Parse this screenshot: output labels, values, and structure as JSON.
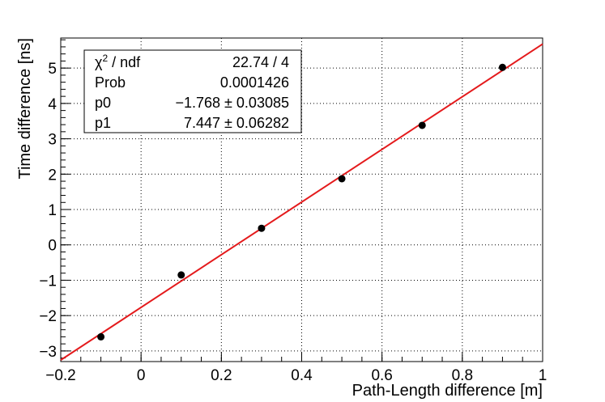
{
  "chart_data": {
    "type": "scatter",
    "xlabel": "Path-Length difference [m]",
    "ylabel": "Time difference [ns]",
    "xlim": [
      -0.2,
      1.0
    ],
    "ylim": [
      -3.3,
      5.85
    ],
    "grid": true,
    "x_tick_labels": [
      "−0.2",
      "0",
      "0.2",
      "0.4",
      "0.6",
      "0.8",
      "1"
    ],
    "y_tick_labels": [
      "−3",
      "−2",
      "−1",
      "0",
      "1",
      "2",
      "3",
      "4",
      "5"
    ],
    "x_ticks": [
      -0.2,
      0,
      0.2,
      0.4,
      0.6,
      0.8,
      1.0
    ],
    "y_ticks": [
      -3,
      -2,
      -1,
      0,
      1,
      2,
      3,
      4,
      5
    ],
    "points": [
      {
        "x": -0.1,
        "y": -2.6
      },
      {
        "x": 0.1,
        "y": -0.85
      },
      {
        "x": 0.3,
        "y": 0.47
      },
      {
        "x": 0.5,
        "y": 1.87
      },
      {
        "x": 0.7,
        "y": 3.38
      },
      {
        "x": 0.9,
        "y": 5.02
      }
    ],
    "fit": {
      "type": "linear",
      "p0": -1.768,
      "p1": 7.447,
      "color": "#e41a1c"
    },
    "point_color": "#000000",
    "stats_box": [
      {
        "key": "chi2_ndf",
        "label_main": "χ",
        "label_sup": "2",
        "label_rest": " / ndf",
        "value": "22.74 / 4"
      },
      {
        "key": "prob",
        "label": "Prob",
        "value": "0.0001426"
      },
      {
        "key": "p0",
        "label": "p0",
        "value": "−1.768 ± 0.03085"
      },
      {
        "key": "p1",
        "label": "p1",
        "value": "7.447 ± 0.06282"
      }
    ]
  }
}
